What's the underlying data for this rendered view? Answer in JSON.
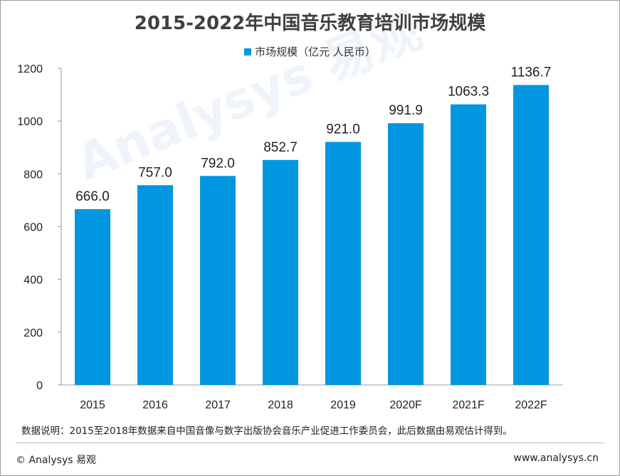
{
  "watermark": "Analysys 易观",
  "chart_data": {
    "type": "bar",
    "title": "2015-2022年中国音乐教育培训市场规模",
    "legend_position": "top",
    "series": [
      {
        "name": "市场规模（亿元 人民币）",
        "color": "#0096e0",
        "values": [
          666.0,
          757.0,
          792.0,
          852.7,
          921.0,
          991.9,
          1063.3,
          1136.7
        ]
      }
    ],
    "categories": [
      "2015",
      "2016",
      "2017",
      "2018",
      "2019",
      "2020F",
      "2021F",
      "2022F"
    ],
    "data_labels": [
      "666.0",
      "757.0",
      "792.0",
      "852.7",
      "921.0",
      "991.9",
      "1063.3",
      "1136.7"
    ],
    "ylim": [
      0,
      1200
    ],
    "yticks": [
      0,
      200,
      400,
      600,
      800,
      1000,
      1200
    ],
    "grid": false
  },
  "note": "数据说明：2015至2018年数据来自中国音像与数字出版协会音乐产业促进工作委员会，此后数据由易观估计得到。",
  "footer": {
    "copyright": "© Analysys 易观",
    "website": "www.analysys.cn"
  }
}
